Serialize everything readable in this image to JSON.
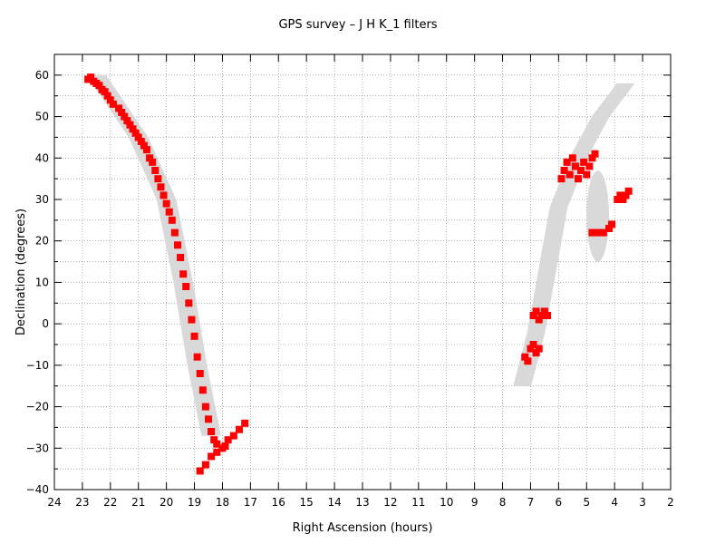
{
  "chart_data": {
    "type": "scatter",
    "title": "GPS survey – J H K_1  filters",
    "xlabel": "Right Ascension (hours)",
    "ylabel": "Declination (degrees)",
    "xlim": [
      24,
      2
    ],
    "ylim": [
      -40,
      65
    ],
    "x_reversed": true,
    "grid": true,
    "xticks": [
      "24",
      "23",
      "22",
      "21",
      "20",
      "19",
      "18",
      "17",
      "16",
      "15",
      "14",
      "13",
      "12",
      "11",
      "10",
      "9",
      "8",
      "7",
      "6",
      "5",
      "4",
      "3",
      "2"
    ],
    "yticks": [
      "60",
      "50",
      "40",
      "30",
      "20",
      "10",
      "0",
      "−10",
      "−20",
      "−30",
      "−40"
    ],
    "legend": "none",
    "colors": {
      "survey": "#ff0000",
      "band": "#d9d9d9",
      "grid": "#808080"
    },
    "bands": [
      {
        "region": "inner galaxy (RA 23–18h)",
        "centerline": [
          [
            22.5,
            60
          ],
          [
            22,
            55
          ],
          [
            21,
            45
          ],
          [
            20,
            30
          ],
          [
            19.4,
            10
          ],
          [
            18.9,
            -10
          ],
          [
            18.4,
            -27
          ]
        ],
        "half_width_hours": 0.35
      },
      {
        "region": "outer galaxy (RA 7–3h)",
        "centerline": [
          [
            7.3,
            -15
          ],
          [
            6.8,
            -2
          ],
          [
            6,
            28
          ],
          [
            5.3,
            40
          ],
          [
            4.5,
            50
          ],
          [
            3.6,
            58
          ]
        ],
        "half_width_hours": 0.32
      },
      {
        "region": "RA 5–4h ellipse",
        "ellipse_center": [
          4.6,
          26
        ],
        "ellipse_radii": [
          0.4,
          11
        ]
      }
    ],
    "series": [
      {
        "type": "scatter",
        "points": [
          [
            22.8,
            59
          ],
          [
            22.7,
            59.5
          ],
          [
            22.6,
            58.5
          ],
          [
            22.5,
            58
          ],
          [
            22.4,
            57.5
          ],
          [
            22.3,
            56.5
          ],
          [
            22.2,
            56
          ],
          [
            22.1,
            55
          ],
          [
            22,
            54
          ],
          [
            21.9,
            53
          ],
          [
            21.7,
            52
          ],
          [
            21.6,
            51
          ],
          [
            21.5,
            50
          ],
          [
            21.4,
            49
          ],
          [
            21.3,
            48
          ],
          [
            21.2,
            47
          ],
          [
            21.1,
            46
          ],
          [
            21,
            45
          ],
          [
            20.9,
            44
          ],
          [
            20.8,
            43
          ],
          [
            20.7,
            42
          ],
          [
            20.6,
            40
          ],
          [
            20.5,
            39
          ],
          [
            20.4,
            37
          ],
          [
            20.3,
            35
          ],
          [
            20.2,
            33
          ],
          [
            20.1,
            31
          ],
          [
            20,
            29
          ],
          [
            19.9,
            27
          ],
          [
            19.8,
            25
          ],
          [
            19.7,
            22
          ],
          [
            19.6,
            19
          ],
          [
            19.5,
            16
          ],
          [
            19.4,
            12
          ],
          [
            19.3,
            9
          ],
          [
            19.2,
            5
          ],
          [
            19.1,
            1
          ],
          [
            19,
            -3
          ],
          [
            18.9,
            -8
          ],
          [
            18.8,
            -12
          ],
          [
            18.7,
            -16
          ],
          [
            18.6,
            -20
          ],
          [
            18.5,
            -23
          ],
          [
            18.4,
            -26
          ],
          [
            18.3,
            -28
          ],
          [
            18.2,
            -29
          ],
          [
            18,
            -30
          ],
          [
            17.9,
            -29.5
          ],
          [
            17.8,
            -28
          ],
          [
            17.6,
            -27
          ],
          [
            17.4,
            -25.5
          ],
          [
            17.2,
            -24
          ],
          [
            18.2,
            -31
          ],
          [
            18.4,
            -32
          ],
          [
            18.6,
            -34
          ],
          [
            18.8,
            -35.5
          ],
          [
            7.2,
            -8
          ],
          [
            7.0,
            -6
          ],
          [
            6.9,
            -5
          ],
          [
            6.8,
            -7
          ],
          [
            6.7,
            -6
          ],
          [
            7.1,
            -9
          ],
          [
            6.9,
            2
          ],
          [
            6.8,
            3
          ],
          [
            6.7,
            1
          ],
          [
            6.6,
            2
          ],
          [
            6.5,
            3
          ],
          [
            6.4,
            2
          ],
          [
            5.9,
            35
          ],
          [
            5.8,
            37
          ],
          [
            5.7,
            39
          ],
          [
            5.6,
            36
          ],
          [
            5.5,
            40
          ],
          [
            5.4,
            38
          ],
          [
            5.3,
            35
          ],
          [
            5.2,
            37
          ],
          [
            5.1,
            39
          ],
          [
            5.0,
            36
          ],
          [
            4.9,
            38
          ],
          [
            4.8,
            40
          ],
          [
            4.7,
            41
          ],
          [
            4.8,
            22
          ],
          [
            4.6,
            22
          ],
          [
            4.4,
            22
          ],
          [
            4.2,
            23
          ],
          [
            4.1,
            24
          ],
          [
            3.9,
            30
          ],
          [
            3.8,
            31
          ],
          [
            3.7,
            30
          ],
          [
            3.6,
            31
          ],
          [
            3.5,
            32
          ]
        ]
      }
    ]
  }
}
